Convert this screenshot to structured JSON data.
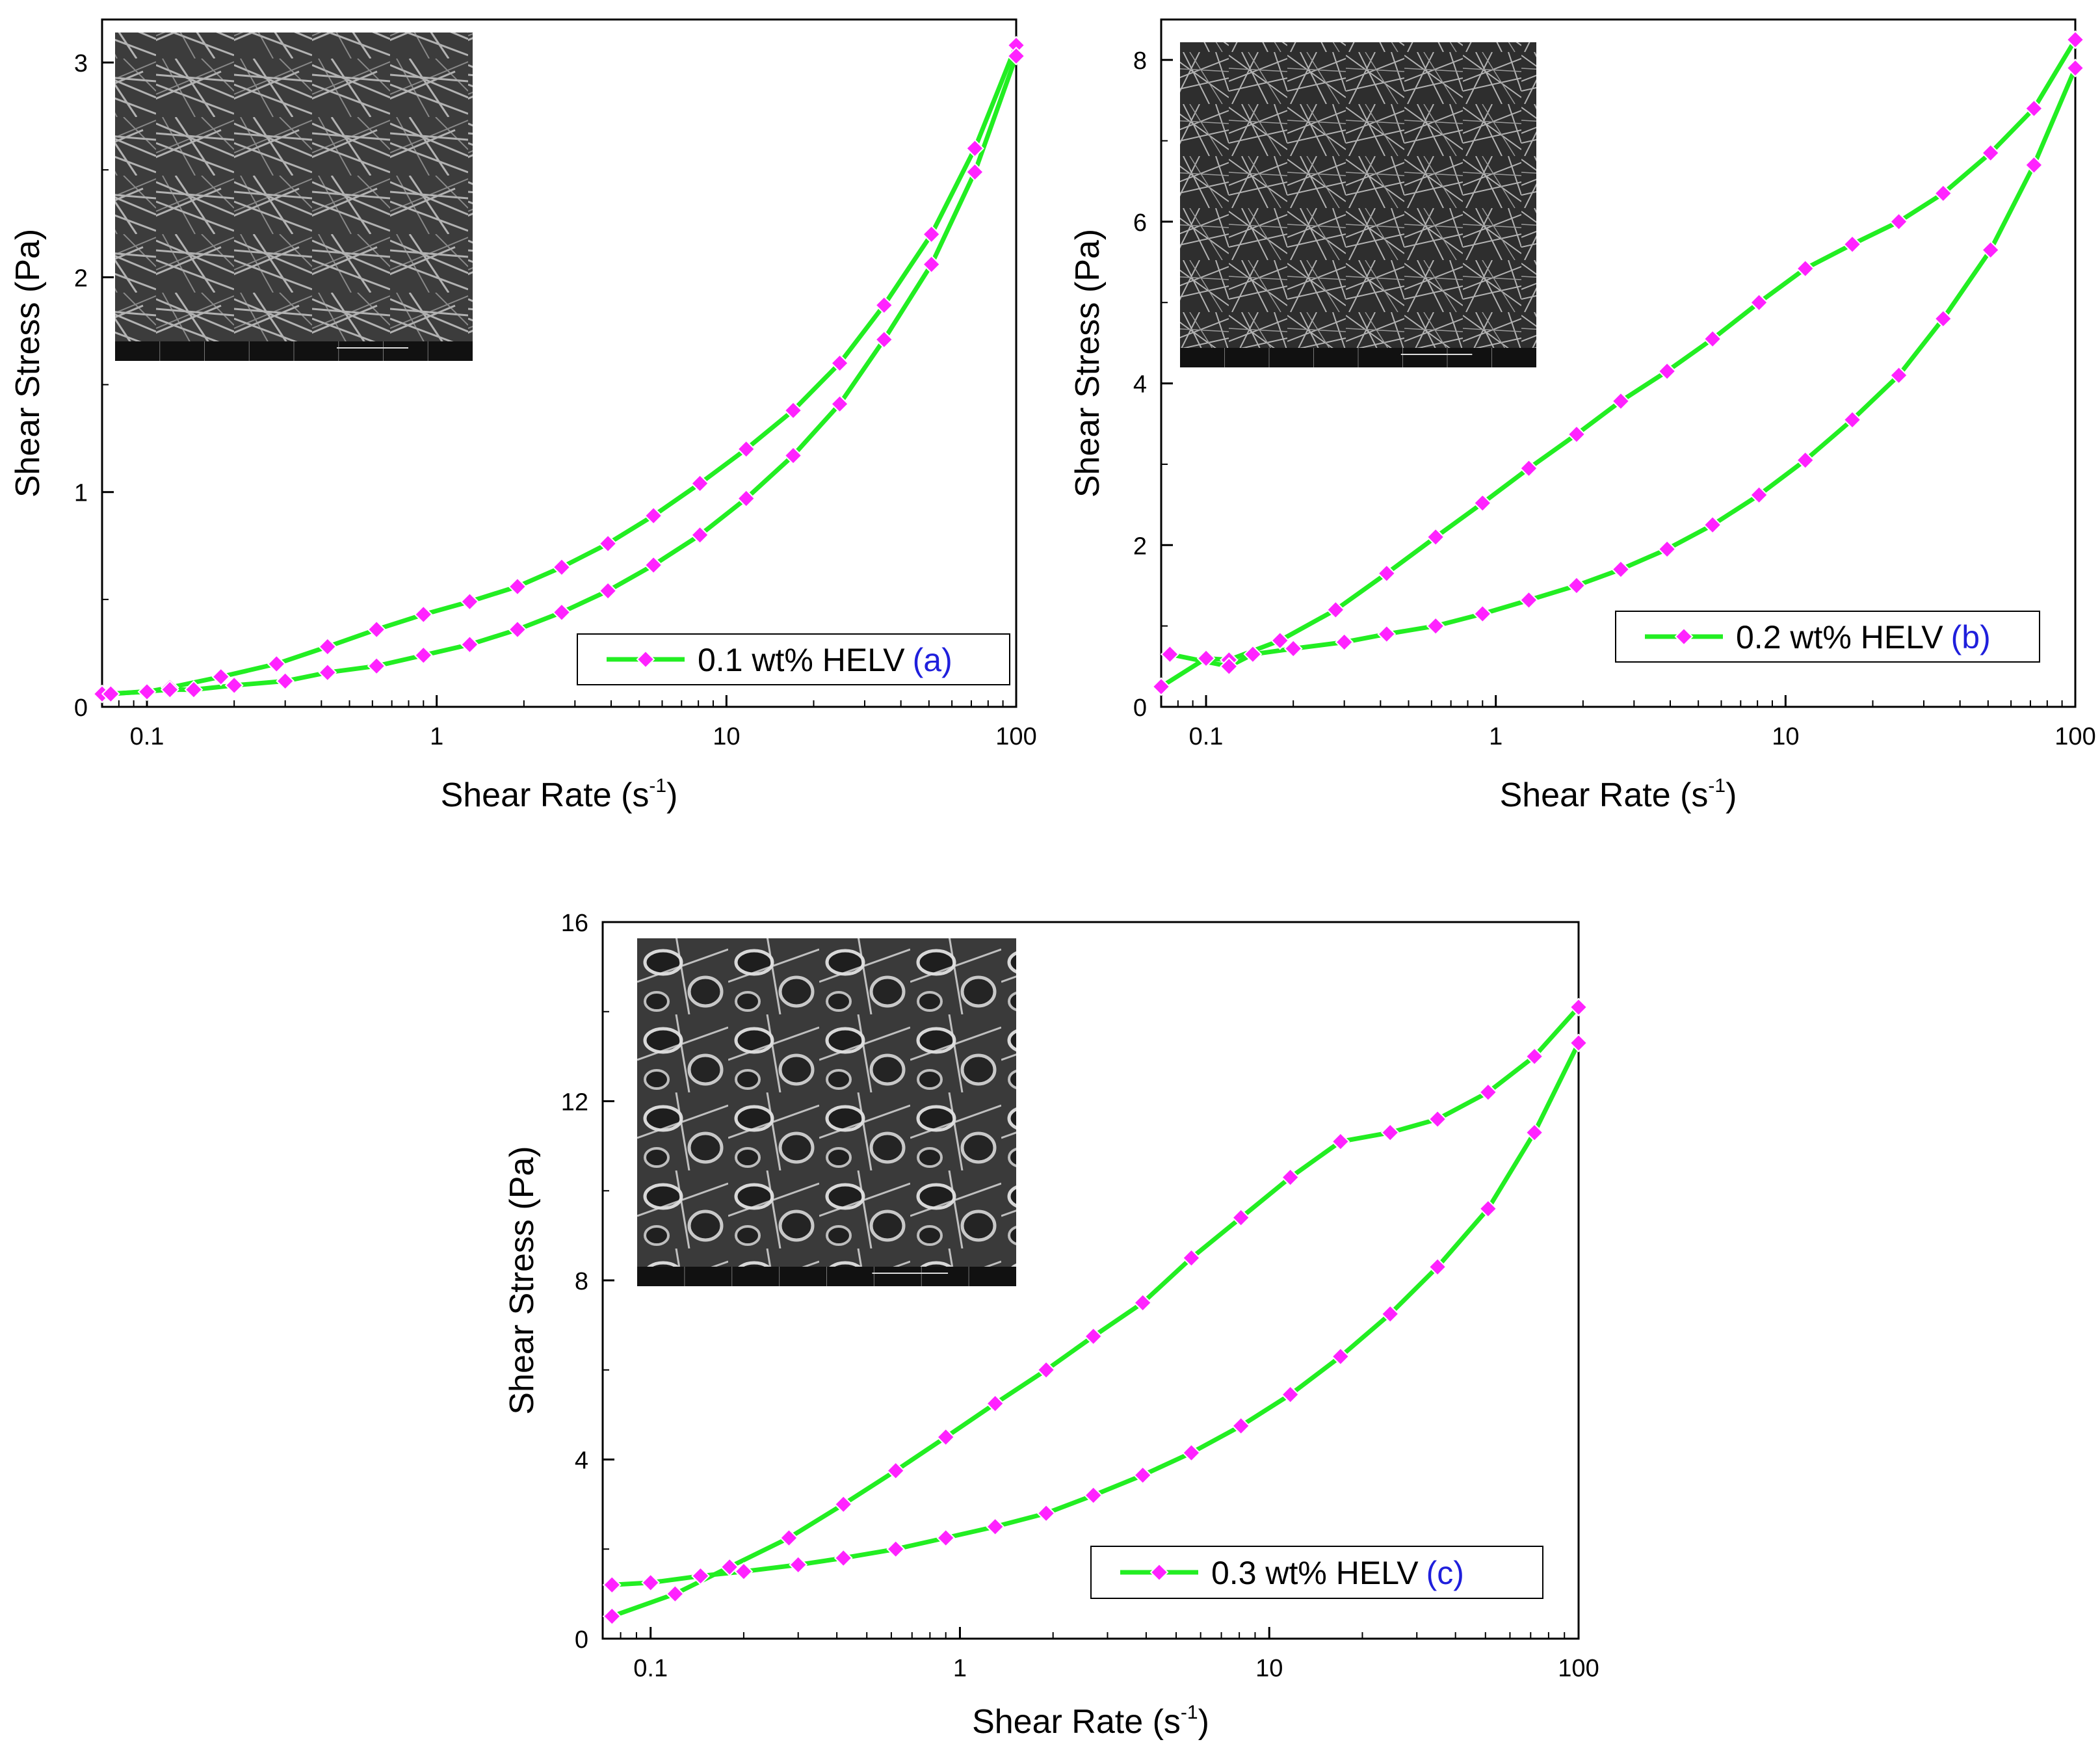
{
  "chart_data": [
    {
      "id": "a",
      "type": "line",
      "xscale": "log",
      "xlim": [
        0.07,
        100
      ],
      "ylim": [
        0,
        3.2
      ],
      "xticks": [
        0.1,
        1,
        10,
        100
      ],
      "xtick_labels": [
        "0.1",
        "1",
        "10",
        "100"
      ],
      "yticks": [
        0,
        1,
        2,
        3
      ],
      "ytick_labels": [
        "0",
        "1",
        "2",
        "3"
      ],
      "xlabel": "Shear Rate (s",
      "xlabel_sup": "-1",
      "xlabel_end": ")",
      "ylabel": "Shear Stress (Pa)",
      "legend": "0.1 wt% HELV",
      "legend_tag": "(a)",
      "legend_position": "bottom-right",
      "inset": "SEM micrograph (top-left)",
      "line_color": "#22ee22",
      "marker_color": "#ff22ff",
      "series": [
        {
          "name": "up",
          "x": [
            0.07,
            0.1,
            0.12,
            0.18,
            0.28,
            0.42,
            0.62,
            0.9,
            1.3,
            1.9,
            2.7,
            3.9,
            5.6,
            8.1,
            11.7,
            17,
            24.6,
            35,
            51,
            72,
            100
          ],
          "y": [
            0.06,
            0.07,
            0.09,
            0.14,
            0.2,
            0.28,
            0.36,
            0.43,
            0.49,
            0.56,
            0.65,
            0.76,
            0.89,
            1.04,
            1.2,
            1.38,
            1.6,
            1.87,
            2.2,
            2.6,
            3.08
          ]
        },
        {
          "name": "down",
          "x": [
            100,
            72,
            51,
            35,
            24.6,
            17,
            11.7,
            8.1,
            5.6,
            3.9,
            2.7,
            1.9,
            1.3,
            0.9,
            0.62,
            0.42,
            0.3,
            0.2,
            0.145,
            0.12,
            0.075
          ],
          "y": [
            3.03,
            2.49,
            2.06,
            1.71,
            1.41,
            1.17,
            0.97,
            0.8,
            0.66,
            0.54,
            0.44,
            0.36,
            0.29,
            0.24,
            0.19,
            0.16,
            0.12,
            0.1,
            0.08,
            0.08,
            0.06
          ]
        }
      ]
    },
    {
      "id": "b",
      "type": "line",
      "xscale": "log",
      "xlim": [
        0.07,
        100
      ],
      "ylim": [
        0,
        8.5
      ],
      "xticks": [
        0.1,
        1,
        10,
        100
      ],
      "xtick_labels": [
        "0.1",
        "1",
        "10",
        "100"
      ],
      "yticks": [
        0,
        2,
        4,
        6,
        8
      ],
      "ytick_labels": [
        "0",
        "2",
        "4",
        "6",
        "8"
      ],
      "xlabel": "Shear Rate (s",
      "xlabel_sup": "-1",
      "xlabel_end": ")",
      "ylabel": "Shear Stress (Pa)",
      "legend": "0.2 wt% HELV",
      "legend_tag": "(b)",
      "legend_position": "bottom-right",
      "inset": "SEM micrograph (top-left)",
      "line_color": "#22ee22",
      "marker_color": "#ff22ff",
      "series": [
        {
          "name": "up",
          "x": [
            0.07,
            0.1,
            0.12,
            0.18,
            0.28,
            0.42,
            0.62,
            0.9,
            1.3,
            1.9,
            2.7,
            3.9,
            5.6,
            8.1,
            11.7,
            17,
            24.6,
            35,
            51,
            72,
            100
          ],
          "y": [
            0.25,
            0.6,
            0.58,
            0.82,
            1.2,
            1.65,
            2.1,
            2.52,
            2.95,
            3.37,
            3.78,
            4.15,
            4.55,
            5.0,
            5.42,
            5.72,
            6.0,
            6.35,
            6.85,
            7.4,
            8.25
          ]
        },
        {
          "name": "down",
          "x": [
            100,
            72,
            51,
            35,
            24.6,
            17,
            11.7,
            8.1,
            5.6,
            3.9,
            2.7,
            1.9,
            1.3,
            0.9,
            0.62,
            0.42,
            0.3,
            0.2,
            0.145,
            0.12,
            0.075
          ],
          "y": [
            7.9,
            6.7,
            5.65,
            4.8,
            4.1,
            3.55,
            3.05,
            2.62,
            2.25,
            1.95,
            1.7,
            1.5,
            1.32,
            1.15,
            1.0,
            0.9,
            0.8,
            0.72,
            0.65,
            0.5,
            0.65
          ]
        }
      ]
    },
    {
      "id": "c",
      "type": "line",
      "xscale": "log",
      "xlim": [
        0.07,
        100
      ],
      "ylim": [
        0,
        16
      ],
      "xticks": [
        0.1,
        1,
        10,
        100
      ],
      "xtick_labels": [
        "0.1",
        "1",
        "10",
        "100"
      ],
      "yticks": [
        0,
        4,
        8,
        12,
        16
      ],
      "ytick_labels": [
        "0",
        "4",
        "8",
        "12",
        "16"
      ],
      "xlabel": "Shear Rate (s",
      "xlabel_sup": "-1",
      "xlabel_end": ")",
      "ylabel": "Shear Stress (Pa)",
      "legend": "0.3 wt% HELV",
      "legend_tag": "(c)",
      "legend_position": "bottom-right",
      "inset": "SEM micrograph (top-left)",
      "line_color": "#22ee22",
      "marker_color": "#ff22ff",
      "series": [
        {
          "name": "up",
          "x": [
            0.075,
            0.12,
            0.18,
            0.28,
            0.42,
            0.62,
            0.9,
            1.3,
            1.9,
            2.7,
            3.9,
            5.6,
            8.1,
            11.7,
            17,
            24.6,
            35,
            51,
            72,
            100
          ],
          "y": [
            0.5,
            1.0,
            1.6,
            2.25,
            3.0,
            3.75,
            4.5,
            5.25,
            6.0,
            6.75,
            7.5,
            8.5,
            9.4,
            10.3,
            11.1,
            11.3,
            11.6,
            12.2,
            13.0,
            14.1
          ]
        },
        {
          "name": "down",
          "x": [
            100,
            72,
            51,
            35,
            24.6,
            17,
            11.7,
            8.1,
            5.6,
            3.9,
            2.7,
            1.9,
            1.3,
            0.9,
            0.62,
            0.42,
            0.3,
            0.2,
            0.145,
            0.1,
            0.075
          ],
          "y": [
            13.3,
            11.3,
            9.6,
            8.3,
            7.25,
            6.3,
            5.45,
            4.75,
            4.15,
            3.65,
            3.2,
            2.8,
            2.5,
            2.25,
            2.0,
            1.8,
            1.65,
            1.5,
            1.4,
            1.25,
            1.2
          ]
        }
      ]
    }
  ]
}
